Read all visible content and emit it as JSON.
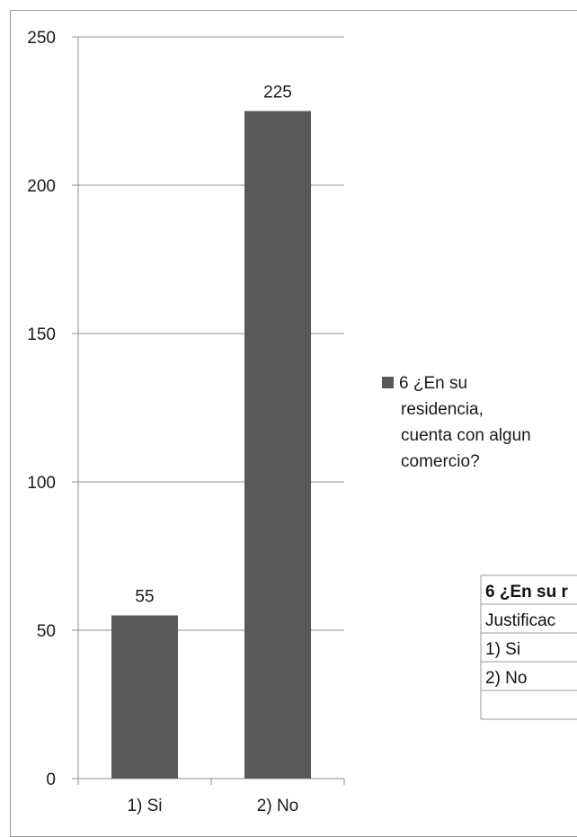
{
  "chart_data": {
    "type": "bar",
    "categories": [
      "1) Si",
      "2) No"
    ],
    "series": [
      {
        "name": "6 ¿En su residencia, cuenta con algun comercio?",
        "values": [
          55,
          225
        ],
        "color": "#595959"
      }
    ],
    "data_labels": [
      "55",
      "225"
    ],
    "ylim": [
      0,
      250
    ],
    "yticks": [
      0,
      50,
      100,
      150,
      200,
      250
    ],
    "ytick_labels": [
      "0",
      "50",
      "100",
      "150",
      "200",
      "250"
    ],
    "grid": true,
    "legend": {
      "placement": "right",
      "lines": [
        "6 ¿En su",
        "residencia,",
        "cuenta con algun",
        "comercio?"
      ]
    },
    "title": "",
    "xlabel": "",
    "ylabel": ""
  },
  "table": {
    "rows": [
      [
        "6 ¿En su r"
      ],
      [
        "Justificac"
      ],
      [
        "1) Si"
      ],
      [
        "2) No"
      ],
      [
        ""
      ]
    ]
  }
}
